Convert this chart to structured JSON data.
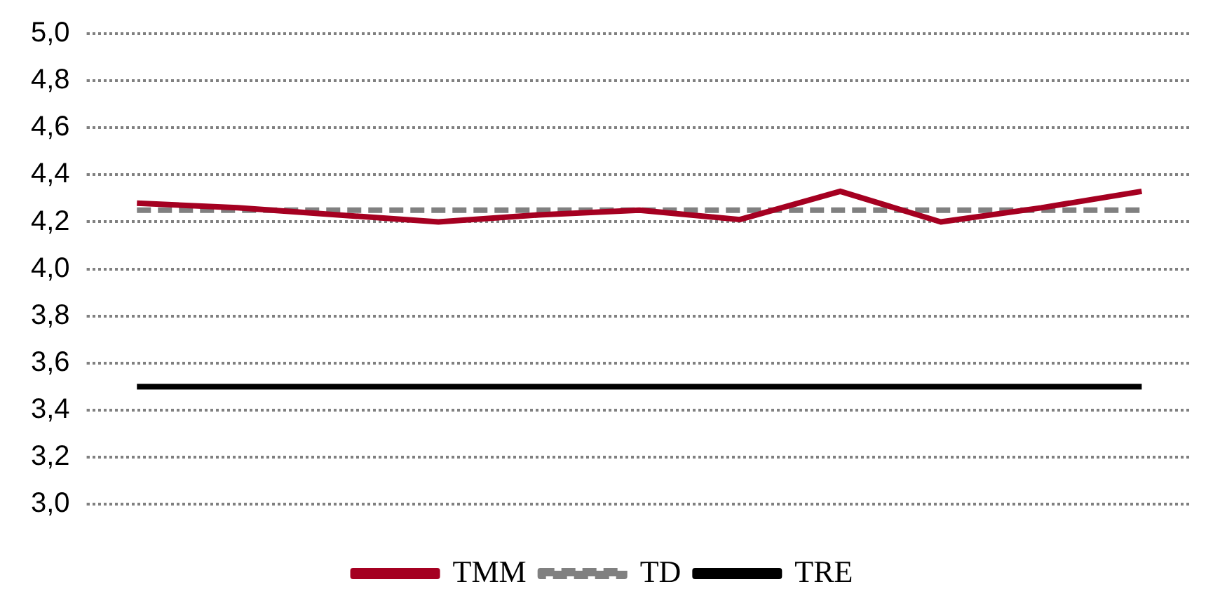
{
  "chart_data": {
    "type": "line",
    "categories": [
      null,
      null,
      null,
      null,
      null,
      null,
      null,
      null,
      null,
      null,
      null
    ],
    "series": [
      {
        "name": "TMM",
        "color": "#a50021",
        "values": [
          4.28,
          4.26,
          4.23,
          4.2,
          4.23,
          4.25,
          4.21,
          4.33,
          4.2,
          4.26,
          4.33
        ]
      },
      {
        "name": "TD",
        "color": "#808080",
        "line_style": "dashed",
        "values": [
          4.25,
          4.25,
          4.25,
          4.25,
          4.25,
          4.25,
          4.25,
          4.25,
          4.25,
          4.25,
          4.25
        ]
      },
      {
        "name": "TRE",
        "color": "#000000",
        "values": [
          3.5,
          3.5,
          3.5,
          3.5,
          3.5,
          3.5,
          3.5,
          3.5,
          3.5,
          3.5,
          3.5
        ]
      }
    ],
    "ylim": [
      3.0,
      5.0
    ],
    "yticks": [
      {
        "value": 3.0,
        "label": "3,0"
      },
      {
        "value": 3.2,
        "label": "3,2"
      },
      {
        "value": 3.4,
        "label": "3,4"
      },
      {
        "value": 3.6,
        "label": "3,6"
      },
      {
        "value": 3.8,
        "label": "3,8"
      },
      {
        "value": 4.0,
        "label": "4,0"
      },
      {
        "value": 4.2,
        "label": "4,2"
      },
      {
        "value": 4.4,
        "label": "4,4"
      },
      {
        "value": 4.6,
        "label": "4,6"
      },
      {
        "value": 4.8,
        "label": "4,8"
      },
      {
        "value": 5.0,
        "label": "5,0"
      }
    ],
    "grid": "y",
    "legend": "bottom",
    "marker": "none"
  }
}
